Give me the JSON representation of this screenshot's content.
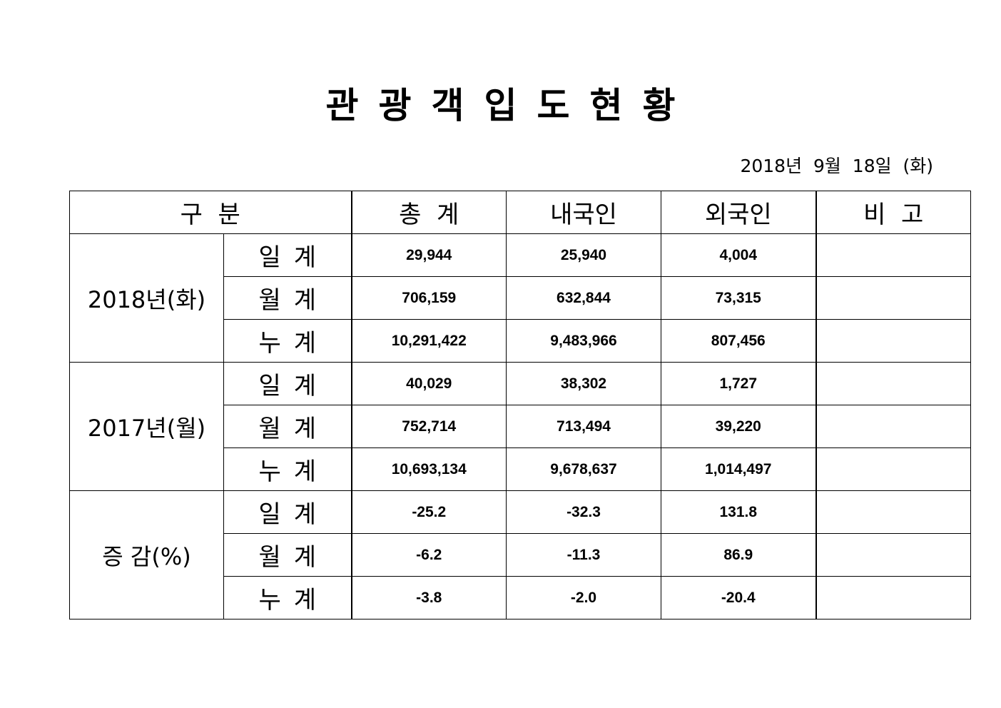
{
  "title": "관광객입도현황",
  "date": "2018년  9월  18일  (화)",
  "table": {
    "headers": [
      "구  분",
      "총  계",
      "내국인",
      "외국인",
      "비  고"
    ],
    "groups": [
      {
        "label": "2018년(화)",
        "rows": [
          {
            "sub": "일계",
            "total": "29,944",
            "domestic": "25,940",
            "foreign": "4,004",
            "note": ""
          },
          {
            "sub": "월계",
            "total": "706,159",
            "domestic": "632,844",
            "foreign": "73,315",
            "note": ""
          },
          {
            "sub": "누계",
            "total": "10,291,422",
            "domestic": "9,483,966",
            "foreign": "807,456",
            "note": ""
          }
        ]
      },
      {
        "label": "2017년(월)",
        "rows": [
          {
            "sub": "일계",
            "total": "40,029",
            "domestic": "38,302",
            "foreign": "1,727",
            "note": ""
          },
          {
            "sub": "월계",
            "total": "752,714",
            "domestic": "713,494",
            "foreign": "39,220",
            "note": ""
          },
          {
            "sub": "누계",
            "total": "10,693,134",
            "domestic": "9,678,637",
            "foreign": "1,014,497",
            "note": ""
          }
        ]
      },
      {
        "label": "증 감(%)",
        "rows": [
          {
            "sub": "일계",
            "total": "-25.2",
            "domestic": "-32.3",
            "foreign": "131.8",
            "note": ""
          },
          {
            "sub": "월계",
            "total": "-6.2",
            "domestic": "-11.3",
            "foreign": "86.9",
            "note": ""
          },
          {
            "sub": "누계",
            "total": "-3.8",
            "domestic": "-2.0",
            "foreign": "-20.4",
            "note": ""
          }
        ]
      }
    ]
  }
}
